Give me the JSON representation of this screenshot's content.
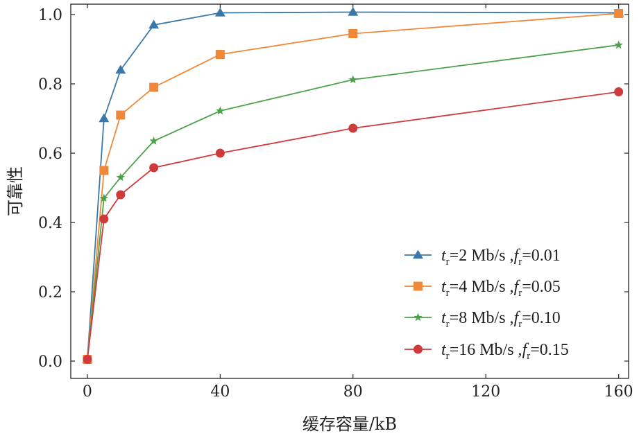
{
  "chart_data": {
    "type": "line",
    "xlabel": "缓存容量/kB",
    "ylabel": "可靠性",
    "xlim": [
      -5,
      163
    ],
    "ylim": [
      -0.05,
      1.03
    ],
    "x_ticks": [
      0,
      40,
      80,
      120,
      160
    ],
    "y_ticks": [
      0.0,
      0.2,
      0.4,
      0.6,
      0.8,
      1.0
    ],
    "x_tick_labels": [
      "0",
      "40",
      "80",
      "120",
      "160"
    ],
    "y_tick_labels": [
      "0.0",
      "0.2",
      "0.4",
      "0.6",
      "0.8",
      "1.0"
    ],
    "legend_position": "bottom-right",
    "grid": false,
    "series": [
      {
        "name": "tr=2 Mb/s ,fr=0.01",
        "legend": {
          "t_sub": "r",
          "t_rest": "=2 Mb/s ,",
          "f_sub": "r",
          "f_rest": "=0.01"
        },
        "color": "#3a78aa",
        "marker": "triangle",
        "x": [
          0,
          5,
          10,
          20,
          40,
          80,
          160
        ],
        "y": [
          0.005,
          0.7,
          0.84,
          0.97,
          1.005,
          1.007,
          1.005
        ]
      },
      {
        "name": "tr=4 Mb/s ,fr=0.05",
        "legend": {
          "t_sub": "r",
          "t_rest": "=4 Mb/s ,",
          "f_sub": "r",
          "f_rest": "=0.05"
        },
        "color": "#f0883a",
        "marker": "square",
        "x": [
          0,
          5,
          10,
          20,
          40,
          80,
          160
        ],
        "y": [
          0.005,
          0.55,
          0.71,
          0.79,
          0.885,
          0.945,
          1.003
        ]
      },
      {
        "name": "tr=8 Mb/s ,fr=0.10",
        "legend": {
          "t_sub": "r",
          "t_rest": "=8 Mb/s ,",
          "f_sub": "r",
          "f_rest": "=0.10"
        },
        "color": "#4ca24a",
        "marker": "star",
        "x": [
          0,
          5,
          10,
          20,
          40,
          80,
          160
        ],
        "y": [
          0.005,
          0.47,
          0.53,
          0.635,
          0.722,
          0.812,
          0.912
        ]
      },
      {
        "name": "tr=16 Mb/s ,fr=0.15",
        "legend": {
          "t_sub": "r",
          "t_rest": "=16 Mb/s ,",
          "f_sub": "r",
          "f_rest": "=0.15"
        },
        "color": "#cf3a3a",
        "marker": "circle",
        "x": [
          0,
          5,
          10,
          20,
          40,
          80,
          160
        ],
        "y": [
          0.005,
          0.41,
          0.48,
          0.558,
          0.6,
          0.672,
          0.777
        ]
      }
    ]
  }
}
